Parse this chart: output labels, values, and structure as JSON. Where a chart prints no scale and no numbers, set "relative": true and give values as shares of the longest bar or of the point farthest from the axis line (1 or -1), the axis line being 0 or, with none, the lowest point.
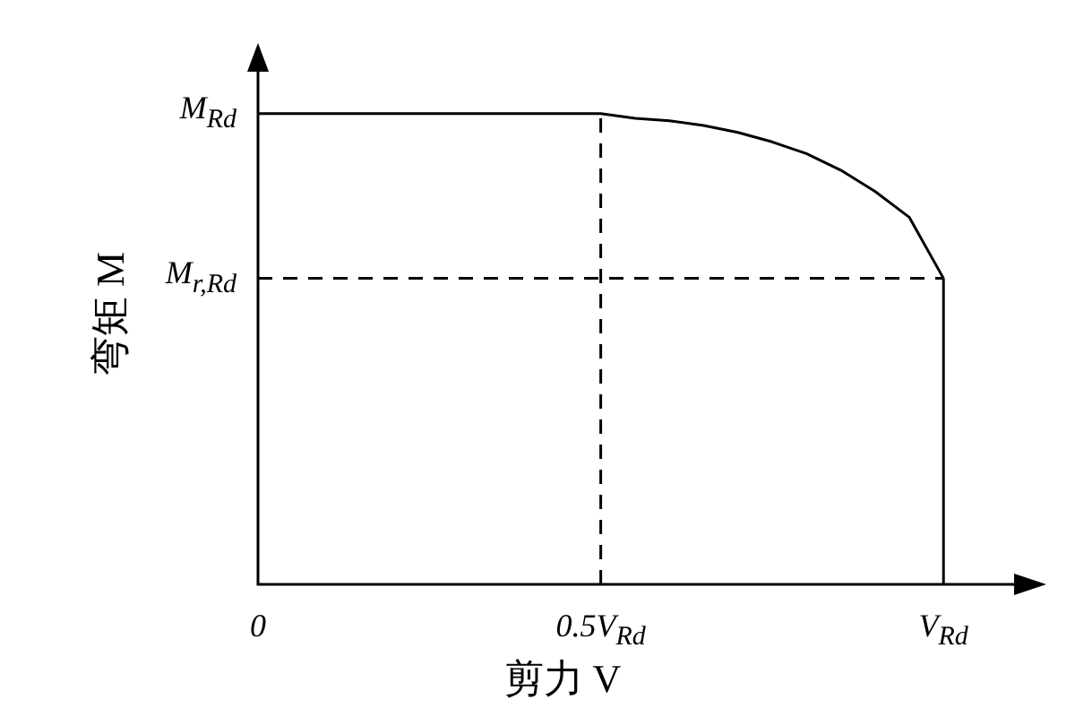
{
  "chart_data": {
    "type": "line",
    "relative": true,
    "xlabel": "剪力 V",
    "ylabel": "弯矩 M",
    "legend": false,
    "categories": [
      "0",
      null,
      null,
      null,
      null,
      null,
      null,
      null,
      null,
      null,
      "0.5V$_{Rd}$",
      null,
      null,
      null,
      null,
      null,
      null,
      null,
      null,
      null,
      "V$_{Rd}$",
      null,
      null,
      null
    ],
    "annotations": [
      "M$_{Rd}$"
    ],
    "ref_lines": [
      {
        "axis": "x",
        "value": "0.5V$_{Rd}$",
        "color": "#000000",
        "line_style": "dashed"
      },
      {
        "axis": "x",
        "value": "V$_{Rd}$",
        "color": "#000000",
        "line_style": "solid"
      },
      {
        "axis": "y",
        "value": 0.65,
        "label": "M$_{r,Rd}$",
        "color": "#000000",
        "line_style": "dashed"
      }
    ],
    "series": [
      {
        "color": "#000000",
        "line_style": "solid",
        "values": [
          1,
          1,
          1,
          1,
          1,
          1,
          1,
          1,
          1,
          1,
          1,
          0.99,
          0.985,
          0.975,
          0.96,
          0.94,
          0.915,
          0.88,
          0.835,
          0.78,
          0.65,
          null,
          null,
          null
        ]
      }
    ]
  }
}
